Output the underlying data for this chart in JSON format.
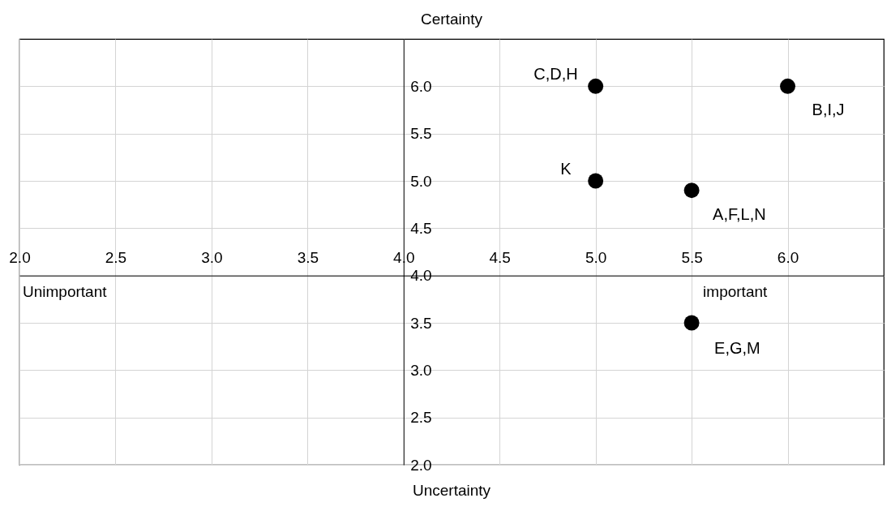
{
  "chart_data": {
    "type": "scatter",
    "title": "Certainty",
    "annotations": [
      "Uncertainty",
      "Unimportant",
      "important"
    ],
    "xlim": [
      2,
      6.5
    ],
    "ylim": [
      2,
      6.5
    ],
    "xticks": [
      {
        "value": 2,
        "label": "2.0"
      },
      {
        "value": 2.5,
        "label": "2.5"
      },
      {
        "value": 3,
        "label": "3.0"
      },
      {
        "value": 3.5,
        "label": "3.5"
      },
      {
        "value": 4,
        "label": "4.0"
      },
      {
        "value": 4.5,
        "label": "4.5"
      },
      {
        "value": 5,
        "label": "5.0"
      },
      {
        "value": 5.5,
        "label": "5.5"
      },
      {
        "value": 6,
        "label": "6.0"
      }
    ],
    "yticks": [
      {
        "value": 2,
        "label": "2.0"
      },
      {
        "value": 2.5,
        "label": "2.5"
      },
      {
        "value": 3,
        "label": "3.0"
      },
      {
        "value": 3.5,
        "label": "3.5"
      },
      {
        "value": 4,
        "label": "4.0"
      },
      {
        "value": 4.5,
        "label": "4.5"
      },
      {
        "value": 5,
        "label": "5.0"
      },
      {
        "value": 5.5,
        "label": "5.5"
      },
      {
        "value": 6,
        "label": "6.0"
      }
    ],
    "grid": true,
    "marker": "circle",
    "series": [
      {
        "name": "C,D,H",
        "color": "#000000",
        "x": [
          5.0
        ],
        "values": [
          6.0
        ]
      },
      {
        "name": "B,I,J",
        "color": "#000000",
        "x": [
          6.0
        ],
        "values": [
          6.0
        ]
      },
      {
        "name": "K",
        "color": "#000000",
        "x": [
          5.0
        ],
        "values": [
          5.0
        ]
      },
      {
        "name": "A,F,L,N",
        "color": "#000000",
        "x": [
          5.5
        ],
        "values": [
          4.9
        ]
      },
      {
        "name": "E,G,M",
        "color": "#000000",
        "x": [
          5.5
        ],
        "values": [
          3.5
        ]
      }
    ]
  }
}
